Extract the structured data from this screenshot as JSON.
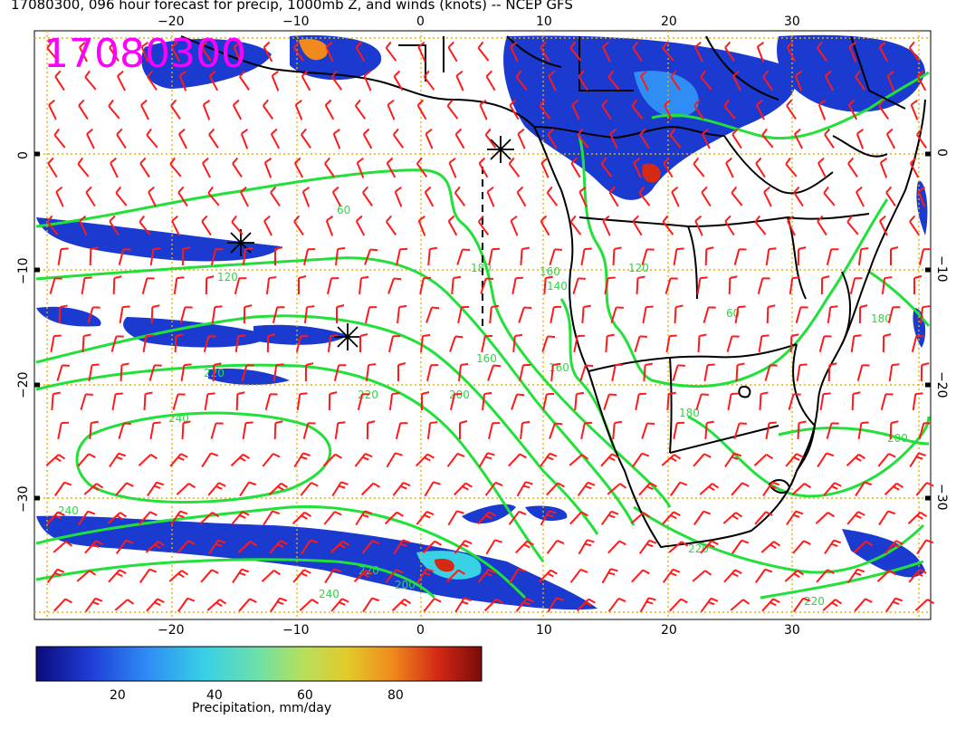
{
  "title": "17080300, 096 hour forecast for precip, 1000mb Z, and winds (knots) -- NCEP GFS",
  "stamp": "17080300",
  "axes": {
    "x_ticks": [
      "−20",
      "−10",
      "0",
      "10",
      "20",
      "30"
    ],
    "y_ticks": [
      "0",
      "−10",
      "−20",
      "−30"
    ]
  },
  "contour_labels": [
    "60",
    "120",
    "180",
    "220",
    "240",
    "220",
    "240",
    "200",
    "160",
    "140",
    "120",
    "180",
    "200",
    "220",
    "160",
    "220",
    "200",
    "180",
    "60",
    "240",
    "220",
    "160"
  ],
  "colorbar": {
    "label": "Precipitation, mm/day",
    "ticks": [
      "20",
      "40",
      "60",
      "80"
    ],
    "range": [
      0,
      100
    ],
    "colors": [
      "#0b0b7a",
      "#1e3cd6",
      "#2f8df5",
      "#38d1e6",
      "#6fe0a8",
      "#b6e05a",
      "#e3c92a",
      "#f08a1c",
      "#d42a14",
      "#7a0a0a"
    ]
  },
  "colors": {
    "contour": "#22e03a",
    "barb": "#ff1a1a",
    "coast": "#000000",
    "grid": "#e8b000",
    "stamp": "#ff00ff"
  }
}
